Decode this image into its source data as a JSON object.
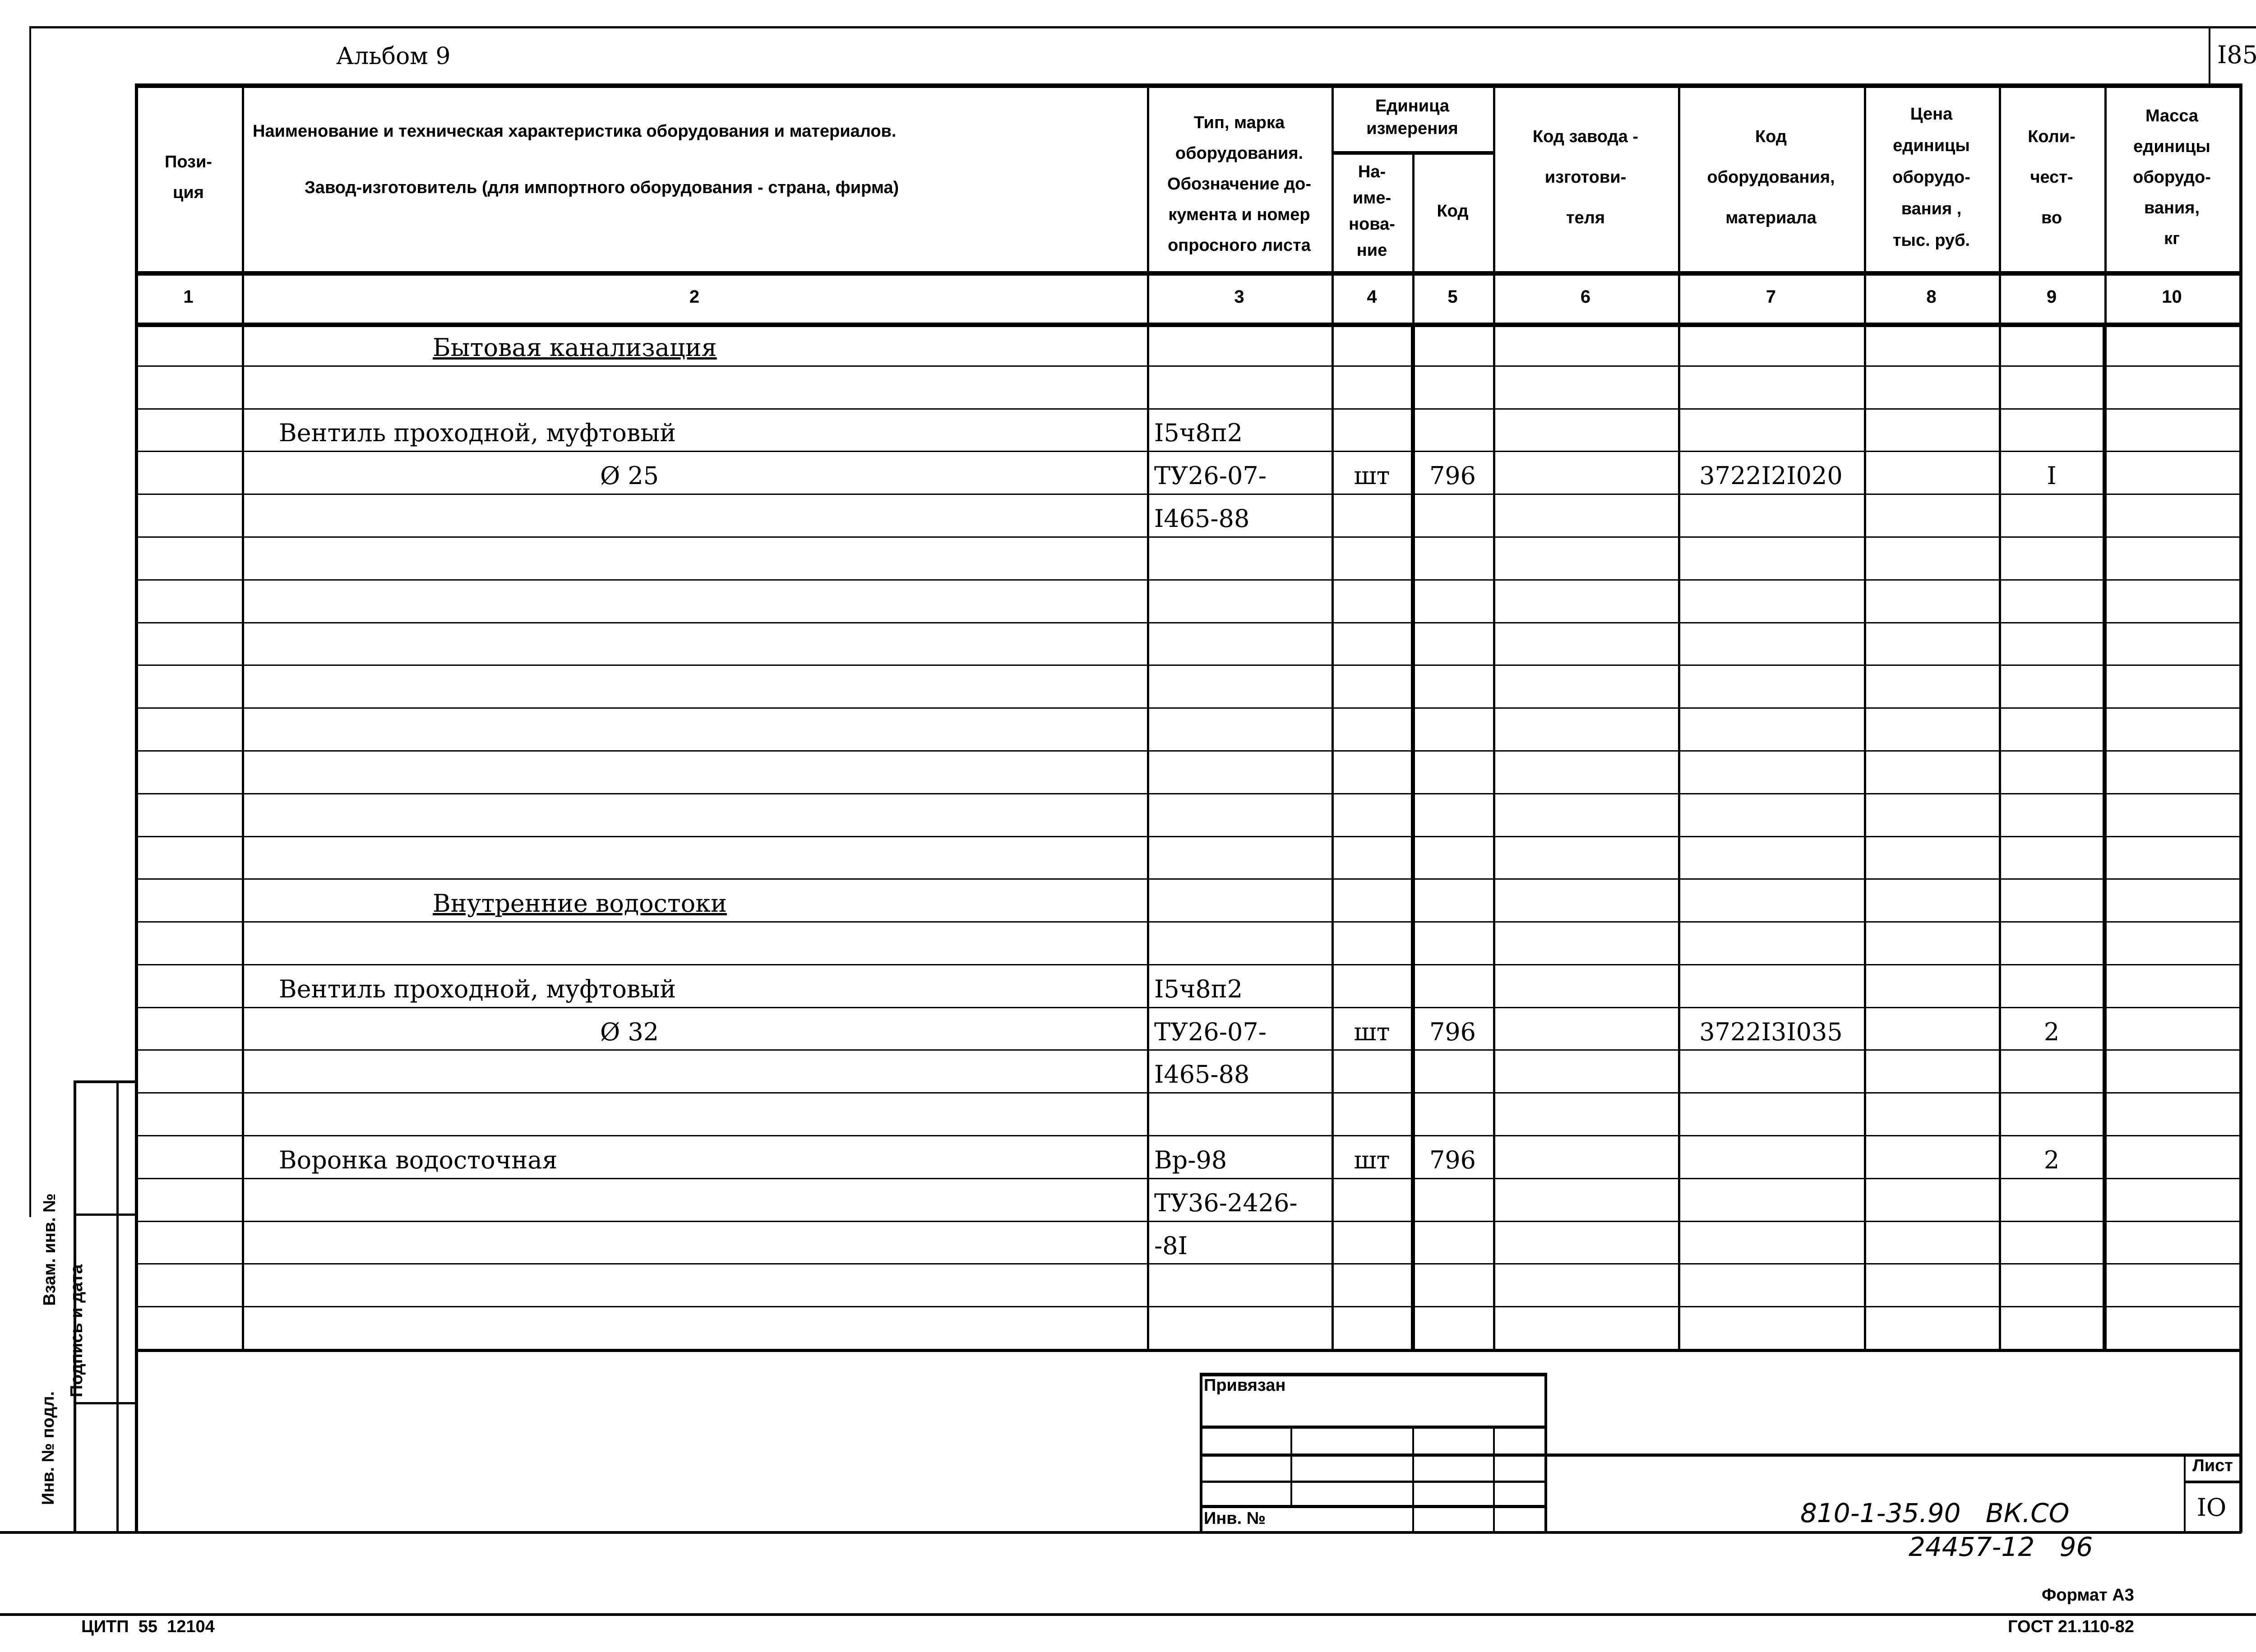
{
  "album": "Альбом 9",
  "sheet_number_top": "I85",
  "header": {
    "col1": "Пози-\nция",
    "col2_line1": "Наименование и техническая характеристика  оборудования и материалов.",
    "col2_line2": "Завод-изготовитель  (для импортного оборудования -  страна, фирма)",
    "col3": "Тип,      марка\nоборудования.\nОбозначение  до-\nкумента  и  номер\nопросного листа",
    "unit_group": "Единица\nизмерения",
    "col4": "На-\nиме-\nнова-\nние",
    "col5": "Код",
    "col6": "Код  завода -\nизготови-\nтеля",
    "col7": "Код\nоборудования,\nматериала",
    "col8": "Цена\nединицы\nоборудо-\nвания ,\nтыс. руб.",
    "col9": "Коли-\nчест-\nво",
    "col10": "Масса\nединицы\nоборудо-\nвания,\nкг"
  },
  "column_numbers": [
    "1",
    "2",
    "3",
    "4",
    "5",
    "6",
    "7",
    "8",
    "9",
    "10"
  ],
  "rows": [
    {
      "name": "Бытовая канализация",
      "section": true
    },
    {},
    {
      "name": "Вентиль проходной, муфтовый",
      "type": "I5ч8п2"
    },
    {
      "name": "Ø 25",
      "indent": true,
      "type": "ТУ26-07-",
      "unit": "шт",
      "unit_code": "796",
      "equip_code": "3722I2I020",
      "qty": "I"
    },
    {
      "type": "I465-88"
    },
    {},
    {},
    {},
    {},
    {},
    {},
    {},
    {},
    {
      "name": "Внутренние водостоки",
      "section": true
    },
    {},
    {
      "name": "Вентиль проходной, муфтовый",
      "type": "I5ч8п2"
    },
    {
      "name": "Ø 32",
      "indent": true,
      "type": "ТУ26-07-",
      "unit": "шт",
      "unit_code": "796",
      "equip_code": "3722I3I035",
      "qty": "2"
    },
    {
      "type": "I465-88"
    },
    {},
    {
      "name": "Воронка водосточная",
      "type": "Вр-98",
      "unit": "шт",
      "unit_code": "796",
      "qty": "2"
    },
    {
      "type": "ТУ36-2426-"
    },
    {
      "type": "-8I"
    },
    {},
    {}
  ],
  "title_block": {
    "privyazan": "Привязан",
    "inv_no": "Инв. №",
    "sheet_label": "Лист",
    "sheet_value": "IO",
    "designation": "810-1-35.90   ВК.СО",
    "handwritten": "24457-12   96"
  },
  "side_stamp": {
    "vzam": "Взам. инв. №",
    "podpis": "Подпись и дата",
    "inv_podl": "Инв. № подл."
  },
  "footer": {
    "format": "Формат А3",
    "gost": "ГОСТ 21.110-82",
    "citp": "ЦИТП  55  12104"
  }
}
